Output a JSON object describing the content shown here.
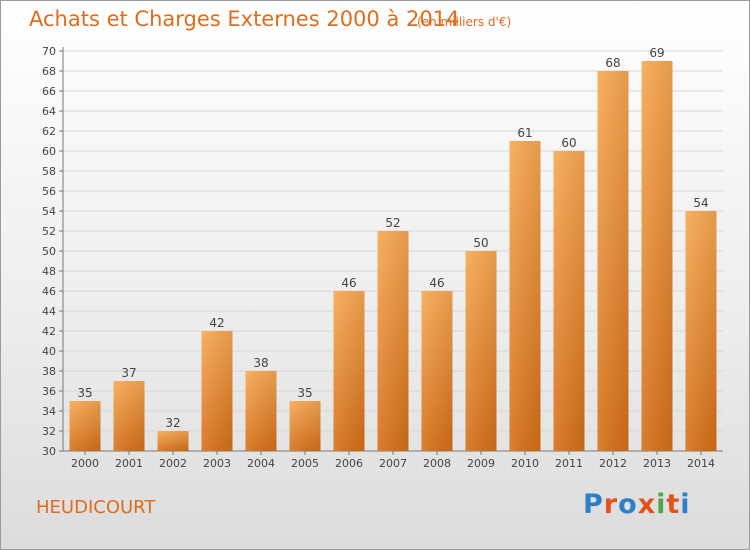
{
  "header": {
    "title": "Achats et Charges Externes 2000 à 2014",
    "subtitle": "(en milliers d'€)"
  },
  "footer": {
    "commune": "HEUDICOURT",
    "logo_text": "Proxiti",
    "logo_colors": [
      "#2f7fc8",
      "#e0541c",
      "#2f7fc8",
      "#e0541c",
      "#4aa84a",
      "#e0541c",
      "#2f7fc8"
    ]
  },
  "colors": {
    "bar_light": "#f8a852",
    "bar_dark": "#d56f17",
    "text": "#444444",
    "title": "#e06c1c",
    "grid": "#d7d7d7"
  },
  "chart_data": {
    "type": "bar",
    "categories": [
      "2000",
      "2001",
      "2002",
      "2003",
      "2004",
      "2005",
      "2006",
      "2007",
      "2008",
      "2009",
      "2010",
      "2011",
      "2012",
      "2013",
      "2014"
    ],
    "values": [
      35,
      37,
      32,
      42,
      38,
      35,
      46,
      52,
      46,
      50,
      61,
      60,
      68,
      69,
      54
    ],
    "ylim": [
      30,
      70
    ],
    "yticks": [
      30,
      32,
      34,
      36,
      38,
      40,
      42,
      44,
      46,
      48,
      50,
      52,
      54,
      56,
      58,
      60,
      62,
      64,
      66,
      68,
      70
    ],
    "grid": true
  }
}
